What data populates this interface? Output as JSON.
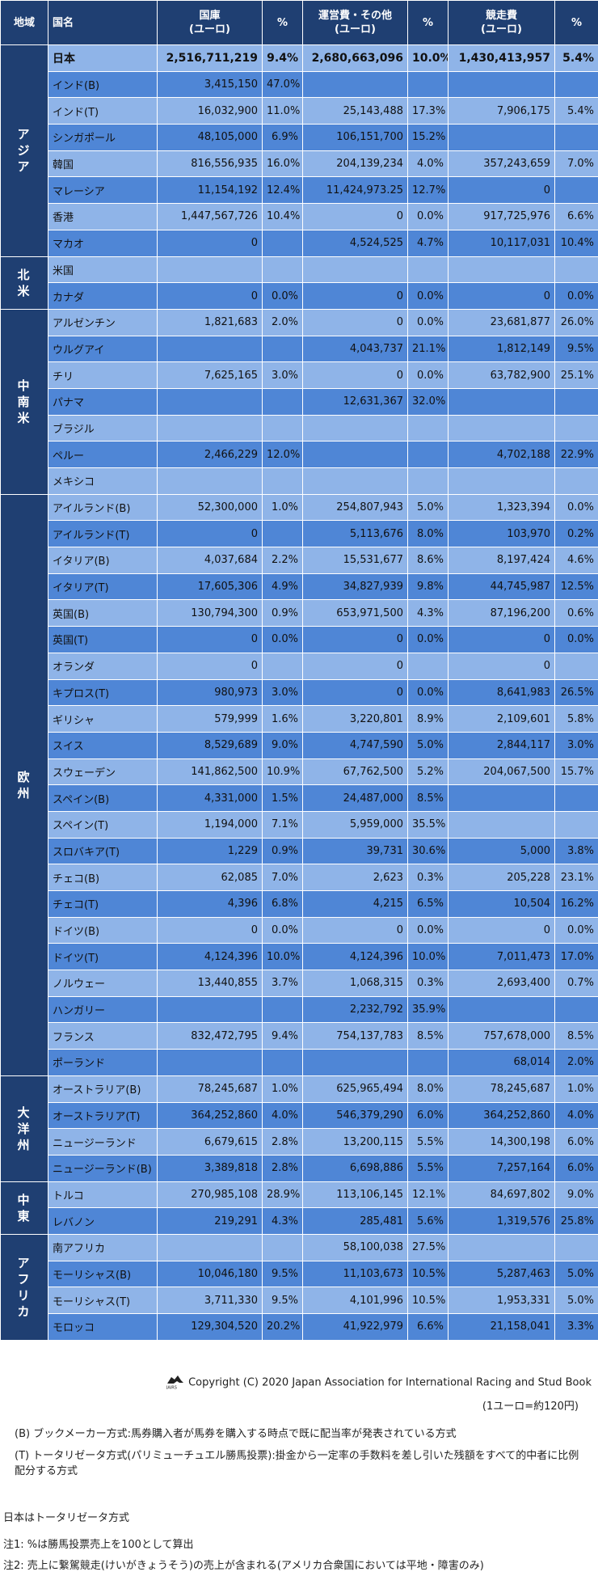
{
  "headers": {
    "region": "地域",
    "country": "国名",
    "treasury": "国庫\n(ユーロ)",
    "pct1": "%",
    "operating": "運営費・その他\n(ユーロ)",
    "pct2": "%",
    "racing": "競走費\n(ユーロ)",
    "pct3": "%"
  },
  "regions": [
    {
      "name": "アジア",
      "rows": [
        [
          "日本",
          "2,516,711,219",
          "9.4%",
          "2,680,663,096",
          "10.0%",
          "1,430,413,957",
          "5.4%"
        ],
        [
          "インド(B)",
          "3,415,150",
          "47.0%",
          "",
          "",
          "",
          ""
        ],
        [
          "インド(T)",
          "16,032,900",
          "11.0%",
          "25,143,488",
          "17.3%",
          "7,906,175",
          "5.4%"
        ],
        [
          "シンガポール",
          "48,105,000",
          "6.9%",
          "106,151,700",
          "15.2%",
          "",
          ""
        ],
        [
          "韓国",
          "816,556,935",
          "16.0%",
          "204,139,234",
          "4.0%",
          "357,243,659",
          "7.0%"
        ],
        [
          "マレーシア",
          "11,154,192",
          "12.4%",
          "11,424,973.25",
          "12.7%",
          "0",
          ""
        ],
        [
          "香港",
          "1,447,567,726",
          "10.4%",
          "0",
          "0.0%",
          "917,725,976",
          "6.6%"
        ],
        [
          "マカオ",
          "0",
          "",
          "4,524,525",
          "4.7%",
          "10,117,031",
          "10.4%"
        ]
      ]
    },
    {
      "name": "北米",
      "rows": [
        [
          "米国",
          "",
          "",
          "",
          "",
          "",
          ""
        ],
        [
          "カナダ",
          "0",
          "0.0%",
          "0",
          "0.0%",
          "0",
          "0.0%"
        ]
      ]
    },
    {
      "name": "中南米",
      "rows": [
        [
          "アルゼンチン",
          "1,821,683",
          "2.0%",
          "0",
          "0.0%",
          "23,681,877",
          "26.0%"
        ],
        [
          "ウルグアイ",
          "",
          "",
          "4,043,737",
          "21.1%",
          "1,812,149",
          "9.5%"
        ],
        [
          "チリ",
          "7,625,165",
          "3.0%",
          "0",
          "0.0%",
          "63,782,900",
          "25.1%"
        ],
        [
          "パナマ",
          "",
          "",
          "12,631,367",
          "32.0%",
          "",
          ""
        ],
        [
          "ブラジル",
          "",
          "",
          "",
          "",
          "",
          ""
        ],
        [
          "ペルー",
          "2,466,229",
          "12.0%",
          "",
          "",
          "4,702,188",
          "22.9%"
        ],
        [
          "メキシコ",
          "",
          "",
          "",
          "",
          "",
          ""
        ]
      ]
    },
    {
      "name": "欧州",
      "rows": [
        [
          "アイルランド(B)",
          "52,300,000",
          "1.0%",
          "254,807,943",
          "5.0%",
          "1,323,394",
          "0.0%"
        ],
        [
          "アイルランド(T)",
          "0",
          "",
          "5,113,676",
          "8.0%",
          "103,970",
          "0.2%"
        ],
        [
          "イタリア(B)",
          "4,037,684",
          "2.2%",
          "15,531,677",
          "8.6%",
          "8,197,424",
          "4.6%"
        ],
        [
          "イタリア(T)",
          "17,605,306",
          "4.9%",
          "34,827,939",
          "9.8%",
          "44,745,987",
          "12.5%"
        ],
        [
          "英国(B)",
          "130,794,300",
          "0.9%",
          "653,971,500",
          "4.3%",
          "87,196,200",
          "0.6%"
        ],
        [
          "英国(T)",
          "0",
          "0.0%",
          "0",
          "0.0%",
          "0",
          "0.0%"
        ],
        [
          "オランダ",
          "0",
          "",
          "0",
          "",
          "0",
          ""
        ],
        [
          "キプロス(T)",
          "980,973",
          "3.0%",
          "0",
          "0.0%",
          "8,641,983",
          "26.5%"
        ],
        [
          "ギリシャ",
          "579,999",
          "1.6%",
          "3,220,801",
          "8.9%",
          "2,109,601",
          "5.8%"
        ],
        [
          "スイス",
          "8,529,689",
          "9.0%",
          "4,747,590",
          "5.0%",
          "2,844,117",
          "3.0%"
        ],
        [
          "スウェーデン",
          "141,862,500",
          "10.9%",
          "67,762,500",
          "5.2%",
          "204,067,500",
          "15.7%"
        ],
        [
          "スペイン(B)",
          "4,331,000",
          "1.5%",
          "24,487,000",
          "8.5%",
          "",
          ""
        ],
        [
          "スペイン(T)",
          "1,194,000",
          "7.1%",
          "5,959,000",
          "35.5%",
          "",
          ""
        ],
        [
          "スロバキア(T)",
          "1,229",
          "0.9%",
          "39,731",
          "30.6%",
          "5,000",
          "3.8%"
        ],
        [
          "チェコ(B)",
          "62,085",
          "7.0%",
          "2,623",
          "0.3%",
          "205,228",
          "23.1%"
        ],
        [
          "チェコ(T)",
          "4,396",
          "6.8%",
          "4,215",
          "6.5%",
          "10,504",
          "16.2%"
        ],
        [
          "ドイツ(B)",
          "0",
          "0.0%",
          "0",
          "0.0%",
          "0",
          "0.0%"
        ],
        [
          "ドイツ(T)",
          "4,124,396",
          "10.0%",
          "4,124,396",
          "10.0%",
          "7,011,473",
          "17.0%"
        ],
        [
          "ノルウェー",
          "13,440,855",
          "3.7%",
          "1,068,315",
          "0.3%",
          "2,693,400",
          "0.7%"
        ],
        [
          "ハンガリー",
          "",
          "",
          "2,232,792",
          "35.9%",
          "",
          ""
        ],
        [
          "フランス",
          "832,472,795",
          "9.4%",
          "754,137,783",
          "8.5%",
          "757,678,000",
          "8.5%"
        ],
        [
          "ポーランド",
          "",
          "",
          "",
          "",
          "68,014",
          "2.0%"
        ]
      ]
    },
    {
      "name": "大洋州",
      "rows": [
        [
          "オーストラリア(B)",
          "78,245,687",
          "1.0%",
          "625,965,494",
          "8.0%",
          "78,245,687",
          "1.0%"
        ],
        [
          "オーストラリア(T)",
          "364,252,860",
          "4.0%",
          "546,379,290",
          "6.0%",
          "364,252,860",
          "4.0%"
        ],
        [
          "ニュージーランド",
          "6,679,615",
          "2.8%",
          "13,200,115",
          "5.5%",
          "14,300,198",
          "6.0%"
        ],
        [
          "ニュージーランド(B)",
          "3,389,818",
          "2.8%",
          "6,698,886",
          "5.5%",
          "7,257,164",
          "6.0%"
        ]
      ]
    },
    {
      "name": "中東",
      "rows": [
        [
          "トルコ",
          "270,985,108",
          "28.9%",
          "113,106,145",
          "12.1%",
          "84,697,802",
          "9.0%"
        ],
        [
          "レバノン",
          "219,291",
          "4.3%",
          "285,481",
          "5.6%",
          "1,319,576",
          "25.8%"
        ]
      ]
    },
    {
      "name": "アフリカ",
      "rows": [
        [
          "南アフリカ",
          "",
          "",
          "58,100,038",
          "27.5%",
          "",
          ""
        ],
        [
          "モーリシャス(B)",
          "10,046,180",
          "9.5%",
          "11,103,673",
          "10.5%",
          "5,287,463",
          "5.0%"
        ],
        [
          "モーリシャス(T)",
          "3,711,330",
          "9.5%",
          "4,101,996",
          "10.5%",
          "1,953,331",
          "5.0%"
        ],
        [
          "モロッコ",
          "129,304,520",
          "20.2%",
          "41,922,979",
          "6.6%",
          "21,158,041",
          "3.3%"
        ]
      ]
    }
  ],
  "footer": {
    "copyright": "Copyright (C) 2020 Japan Association for International Racing and Stud Book",
    "logo_text": "JAIRS",
    "rate": "(1ユーロ=約120円)",
    "note_b": "(B) ブックメーカー方式:馬券購入者が馬券を購入する時点で既に配当率が発表されている方式",
    "note_t": "(T) トータリゼータ方式(パリミューチュエル勝馬投票):掛金から一定率の手数料を差し引いた残額をすべて的中者に比例配分する方式",
    "japan_note": "日本はトータリゼータ方式",
    "note1": "注1: %は勝馬投票売上を100として算出",
    "note2": "注2: 売上に繋駕競走(けいがきょうそう)の売上が含まれる(アメリカ合衆国においては平地・障害のみ)"
  }
}
